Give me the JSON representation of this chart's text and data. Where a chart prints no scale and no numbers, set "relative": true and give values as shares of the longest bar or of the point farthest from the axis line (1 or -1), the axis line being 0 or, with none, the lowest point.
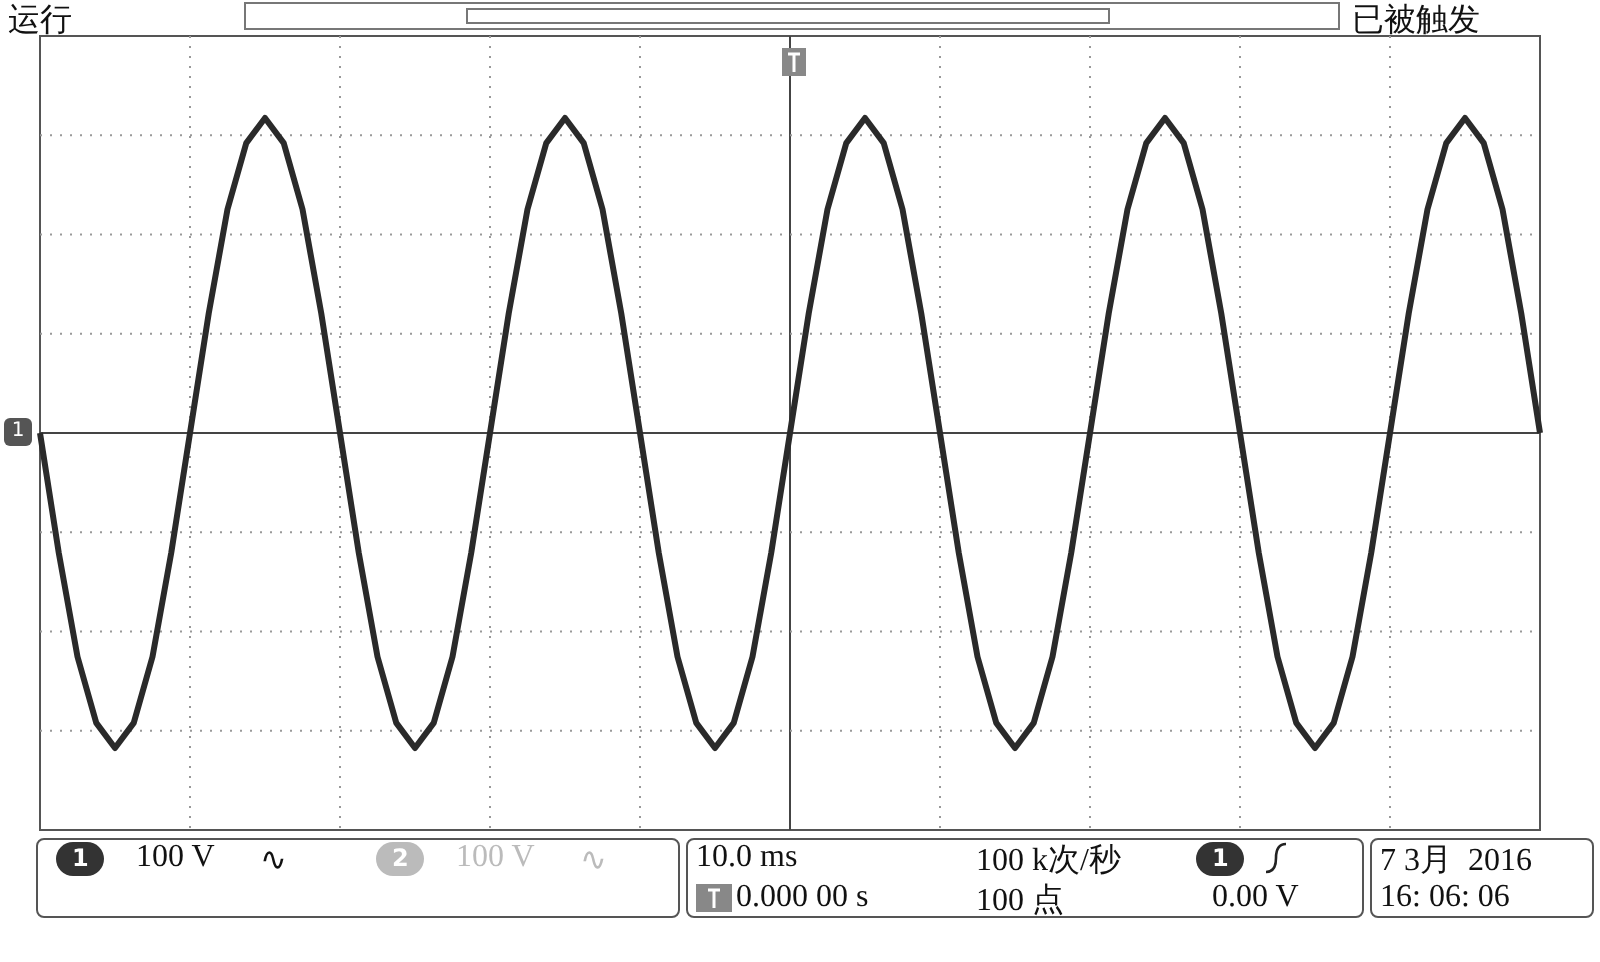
{
  "chart_data": {
    "type": "line",
    "relative": true,
    "grid": true,
    "categories": [
      null,
      null,
      null,
      null,
      null,
      null,
      null,
      null,
      null,
      null,
      null,
      null,
      null,
      null,
      null,
      null,
      null,
      null,
      null,
      null,
      null,
      null,
      null,
      null,
      null,
      null,
      null,
      null,
      null,
      null,
      null,
      null,
      null,
      null,
      null,
      null,
      null,
      null,
      null,
      null,
      null,
      null,
      null,
      null,
      null,
      null,
      null,
      null,
      null,
      null,
      null,
      null,
      null,
      null,
      null,
      null,
      null,
      null,
      null,
      null,
      null,
      null,
      null,
      null,
      null,
      null,
      null,
      null,
      null,
      null,
      null,
      null,
      null,
      null,
      null,
      null,
      null,
      null,
      null,
      null,
      null
    ],
    "series": [
      {
        "color": "#2a2a2a",
        "values": [
          0,
          -0.38,
          -0.71,
          -0.92,
          -1,
          -0.92,
          -0.71,
          -0.38,
          0,
          0.38,
          0.71,
          0.92,
          1,
          0.92,
          0.71,
          0.38,
          0,
          -0.38,
          -0.71,
          -0.92,
          -1,
          -0.92,
          -0.71,
          -0.38,
          0,
          0.38,
          0.71,
          0.92,
          1,
          0.92,
          0.71,
          0.38,
          0,
          -0.38,
          -0.71,
          -0.92,
          -1,
          -0.92,
          -0.71,
          -0.38,
          0,
          0.38,
          0.71,
          0.92,
          1,
          0.92,
          0.71,
          0.38,
          0,
          -0.38,
          -0.71,
          -0.92,
          -1,
          -0.92,
          -0.71,
          -0.38,
          0,
          0.38,
          0.71,
          0.92,
          1,
          0.92,
          0.71,
          0.38,
          0,
          -0.38,
          -0.71,
          -0.92,
          -1,
          -0.92,
          -0.71,
          -0.38,
          0,
          0.38,
          0.71,
          0.92,
          1,
          0.92,
          0.71,
          0.38,
          0
        ]
      }
    ],
    "annotations": [
      "运行",
      "已被触发",
      "1",
      "100 V",
      "∿",
      "2",
      "100 V",
      "∿",
      "10.0 ms",
      "0.000 00 s",
      "100 k次/秒",
      "100 点",
      "1",
      "0.00 V",
      "7 3月  2016",
      "16: 06: 06"
    ]
  }
}
